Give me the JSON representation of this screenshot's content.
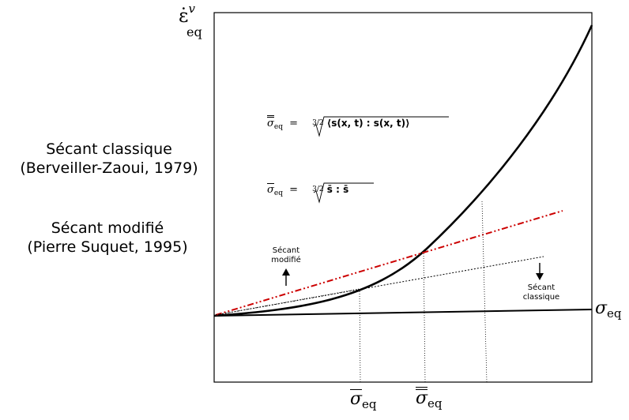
{
  "labels": {
    "y_axis": "ε̇",
    "y_axis_sup": "v",
    "y_axis_sub": "eq",
    "x_axis": "σ",
    "x_axis_sub": "eq",
    "secant_classic_line1": "Sécant classique",
    "secant_classic_line2": "(Berveiller-Zaoui, 1979)",
    "secant_modified_line1": "Sécant modifié",
    "secant_modified_line2": "(Pierre Suquet, 1995)",
    "small_modified_line1": "Sécant",
    "small_modified_line2": "modifié",
    "small_classic_line1": "Sécant",
    "small_classic_line2": "classique",
    "tick_sigma_bar": "σ",
    "tick_sigma_bar_sub": "eq",
    "tick_sigma_dbar": "σ",
    "tick_sigma_dbar_sub": "eq"
  },
  "formulas": {
    "f1_lhs": "σ",
    "f1_sub": "eq",
    "f1_eq": "=",
    "f1_frac": "3/2",
    "f1_body": "⟨s(x, t) : s(x, t)⟩",
    "f2_lhs": "σ",
    "f2_sub": "eq",
    "f2_eq": "=",
    "f2_frac": "3/2",
    "f2_body": "s̄ : s̄"
  },
  "colors": {
    "axes": "#000000",
    "curve": "#000000",
    "secant_modified": "#cc0000",
    "secant_classic": "#000000"
  }
}
